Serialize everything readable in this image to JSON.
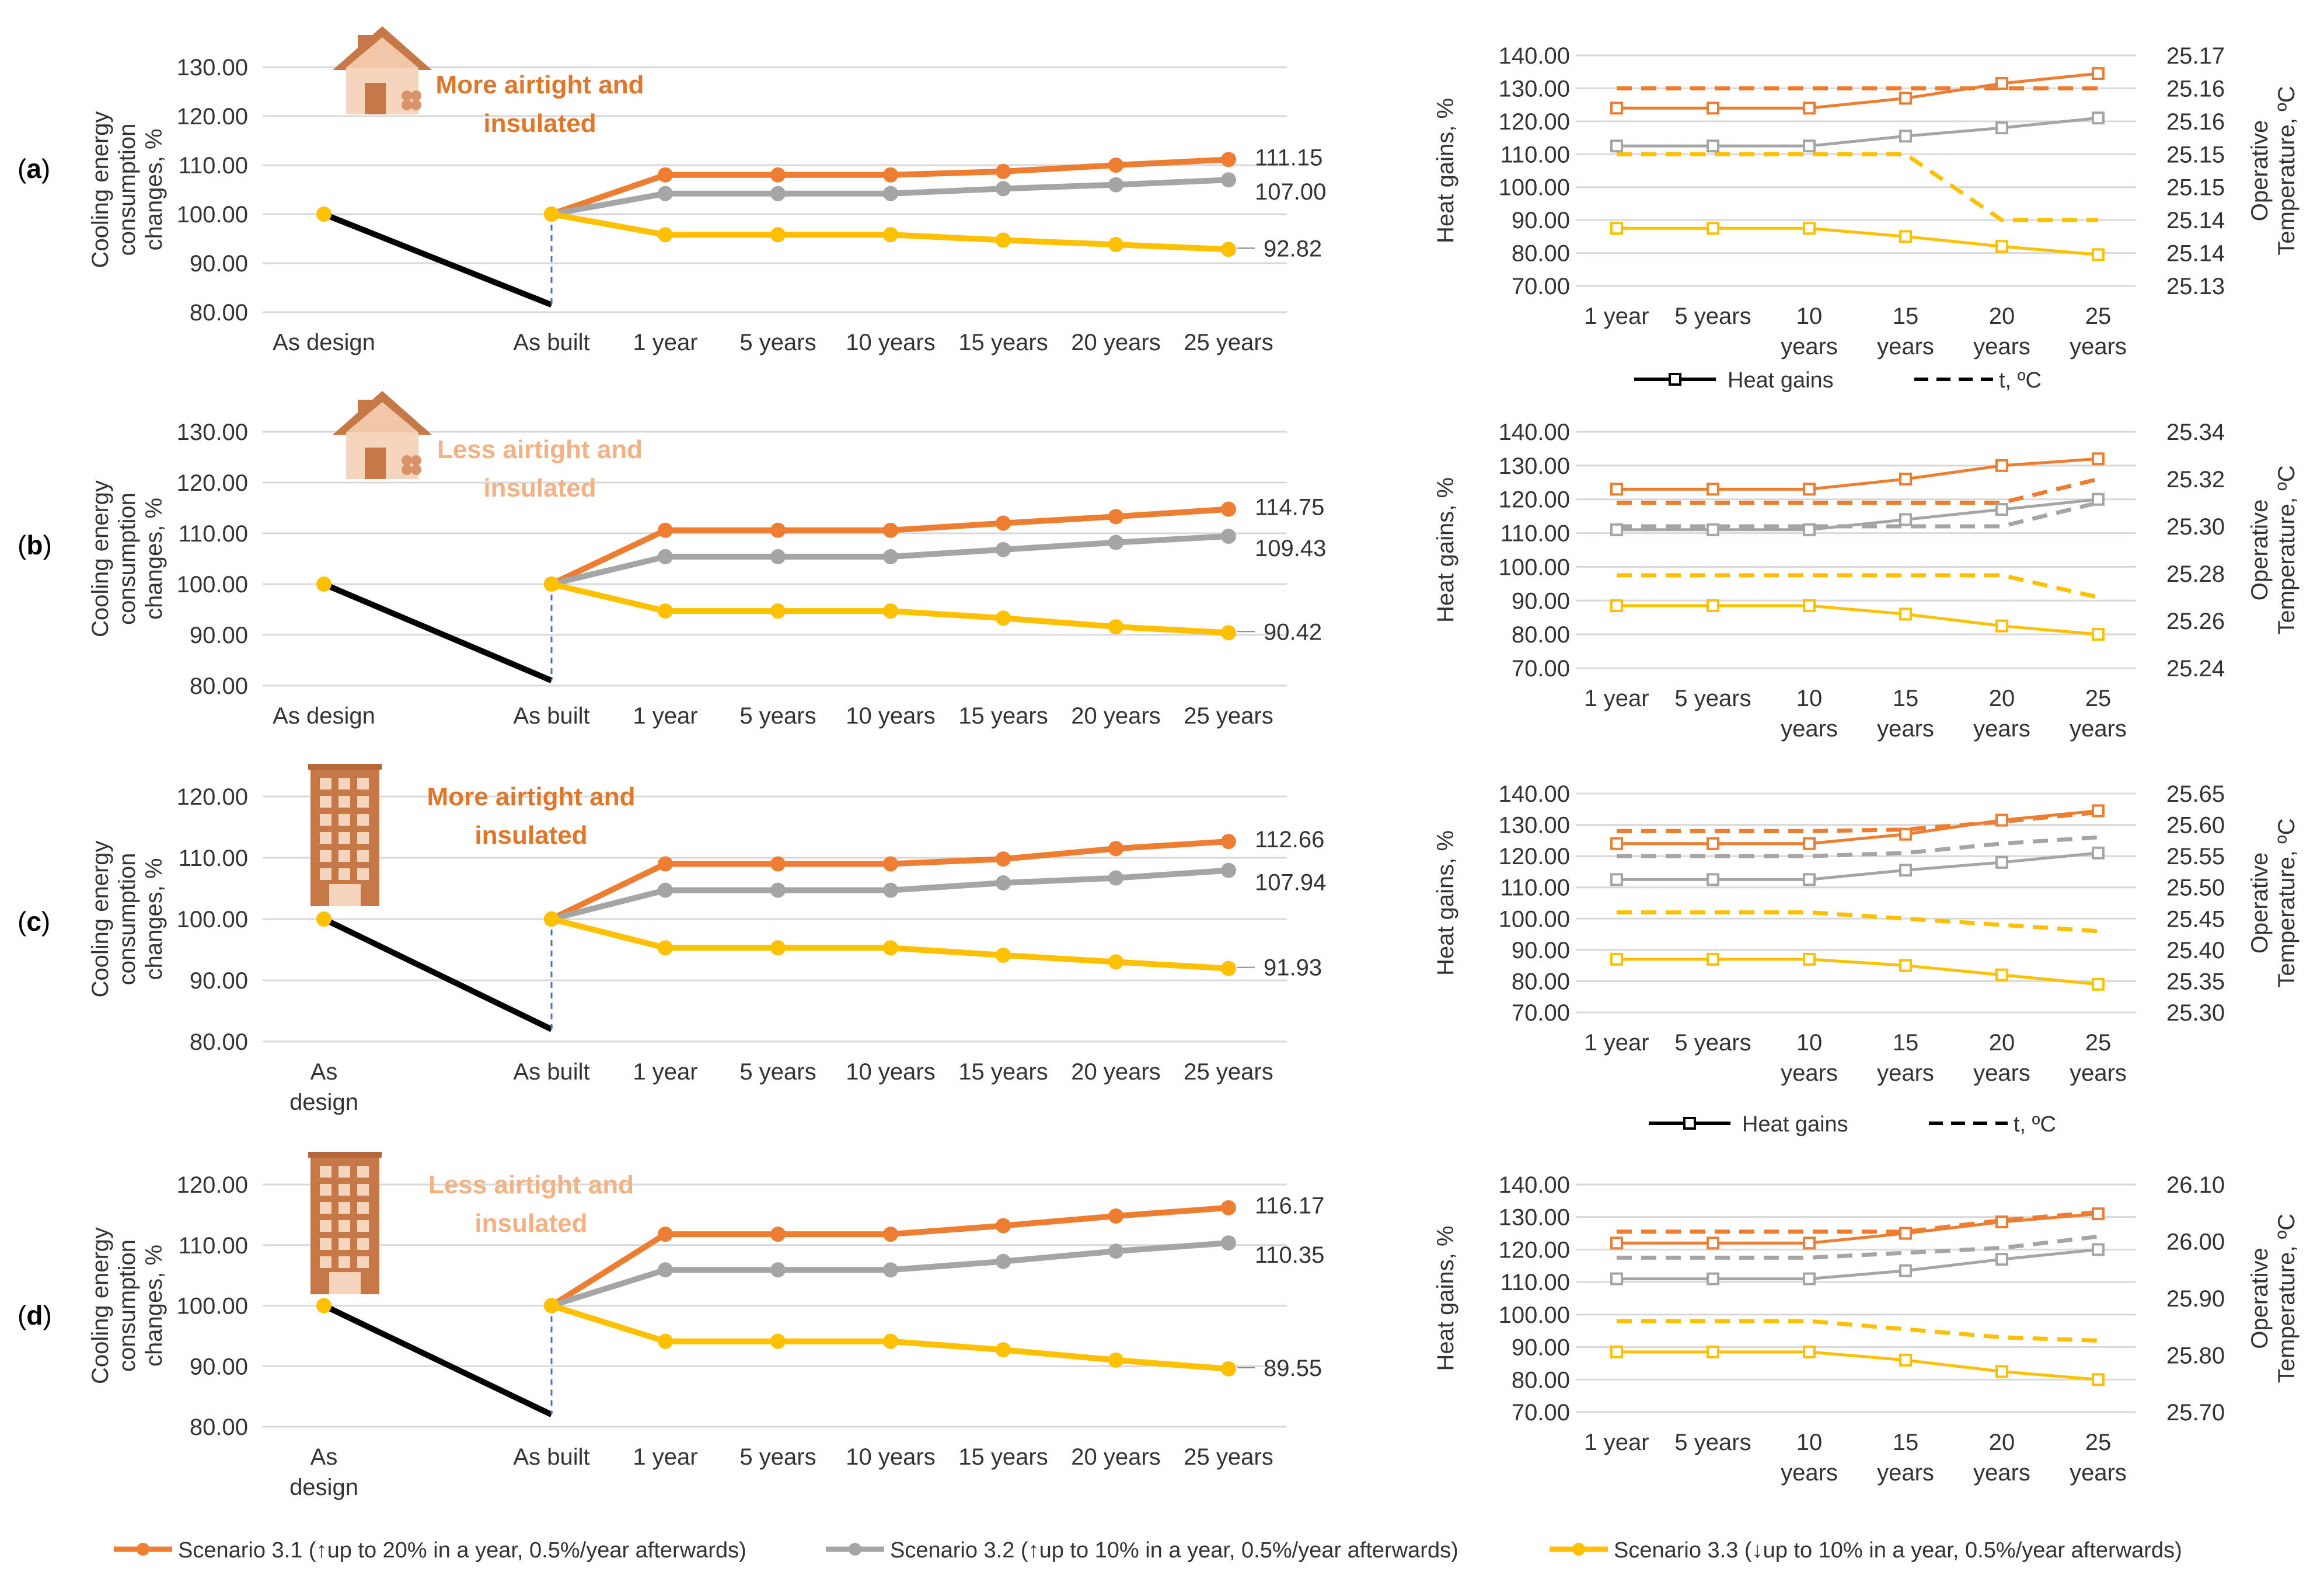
{
  "colors": {
    "s31": "#ED7D31",
    "s32": "#A5A5A5",
    "s33": "#FFC000",
    "black": "#000000",
    "grid": "#D9D9D9",
    "dark_orange_text": "#E0762A",
    "light_orange_text": "#F4B183",
    "connector": "#4472C4"
  },
  "legend_bottom": [
    {
      "name": "Scenario 3.1 (↑up to 20% in a year, 0.5%/year afterwards)",
      "color": "#ED7D31"
    },
    {
      "name": "Scenario 3.2 (↑up to 10% in a year, 0.5%/year afterwards)",
      "color": "#A5A5A5"
    },
    {
      "name": "Scenario 3.3 (↓up to 10% in a year, 0.5%/year afterwards)",
      "color": "#FFC000"
    }
  ],
  "legend_right": {
    "heat_gains": "Heat gains",
    "temperature": "t, ºC"
  },
  "chart_data": [
    {
      "type": "line",
      "panel": "(a)",
      "building": "house",
      "annotation": "More airtight and insulated",
      "annotation_lines": [
        "More airtight and",
        "insulated"
      ],
      "annotation_style": "dark",
      "ylabel_lines": [
        "Cooling energy",
        "consumption",
        "changes, %"
      ],
      "ylim": [
        80,
        130
      ],
      "yticks": [
        80,
        90,
        100,
        110,
        120,
        130
      ],
      "ytick_labels": [
        "80.00",
        "90.00",
        "100.00",
        "110.00",
        "120.00",
        "130.00"
      ],
      "categories": [
        [
          "As design"
        ],
        [
          "As built"
        ],
        [
          "1 year"
        ],
        [
          "5 years"
        ],
        [
          "10 years"
        ],
        [
          "15 years"
        ],
        [
          "20 years"
        ],
        [
          "25 years"
        ]
      ],
      "design_value": 100,
      "as_built_drop": 81.5,
      "series": [
        {
          "name": "Scenario 3.1",
          "values": [
            null,
            100,
            108.0,
            108.0,
            108.0,
            108.7,
            110.0,
            111.15
          ],
          "end_label": "111.15"
        },
        {
          "name": "Scenario 3.2",
          "values": [
            null,
            100,
            104.2,
            104.2,
            104.2,
            105.2,
            106.0,
            107.0
          ],
          "end_label": "107.00"
        },
        {
          "name": "Scenario 3.3",
          "values": [
            null,
            100,
            95.8,
            95.8,
            95.8,
            94.7,
            93.8,
            92.82
          ],
          "end_label": "92.82"
        }
      ]
    },
    {
      "type": "line",
      "panel": "(b)",
      "building": "house",
      "annotation": "Less airtight and insulated",
      "annotation_lines": [
        "Less airtight and",
        "insulated"
      ],
      "annotation_style": "light",
      "ylabel_lines": [
        "Cooling energy",
        "consumption",
        "changes, %"
      ],
      "ylim": [
        80,
        130
      ],
      "yticks": [
        80,
        90,
        100,
        110,
        120,
        130
      ],
      "ytick_labels": [
        "80.00",
        "90.00",
        "100.00",
        "110.00",
        "120.00",
        "130.00"
      ],
      "categories": [
        [
          "As design"
        ],
        [
          "As built"
        ],
        [
          "1 year"
        ],
        [
          "5 years"
        ],
        [
          "10 years"
        ],
        [
          "15 years"
        ],
        [
          "20 years"
        ],
        [
          "25 years"
        ]
      ],
      "design_value": 100,
      "as_built_drop": 81.0,
      "series": [
        {
          "name": "Scenario 3.1",
          "values": [
            null,
            100,
            110.6,
            110.6,
            110.6,
            112.0,
            113.3,
            114.75
          ],
          "end_label": "114.75"
        },
        {
          "name": "Scenario 3.2",
          "values": [
            null,
            100,
            105.4,
            105.4,
            105.4,
            106.8,
            108.2,
            109.43
          ],
          "end_label": "109.43"
        },
        {
          "name": "Scenario 3.3",
          "values": [
            null,
            100,
            94.7,
            94.7,
            94.7,
            93.3,
            91.6,
            90.42
          ],
          "end_label": "90.42"
        }
      ]
    },
    {
      "type": "line",
      "panel": "(c)",
      "building": "apartment",
      "annotation": "More airtight and insulated",
      "annotation_lines": [
        "More airtight and",
        "insulated"
      ],
      "annotation_style": "dark",
      "ylabel_lines": [
        "Cooling energy",
        "consumption",
        "changes, %"
      ],
      "ylim": [
        80,
        120
      ],
      "yticks": [
        80,
        90,
        100,
        110,
        120
      ],
      "ytick_labels": [
        "80.00",
        "90.00",
        "100.00",
        "110.00",
        "120.00"
      ],
      "categories": [
        [
          "As",
          "design"
        ],
        [
          "As built"
        ],
        [
          "1 year"
        ],
        [
          "5 years"
        ],
        [
          "10 years"
        ],
        [
          "15 years"
        ],
        [
          "20 years"
        ],
        [
          "25 years"
        ]
      ],
      "design_value": 100,
      "as_built_drop": 82.0,
      "series": [
        {
          "name": "Scenario 3.1",
          "values": [
            null,
            100,
            109.0,
            109.0,
            109.0,
            109.8,
            111.5,
            112.66
          ],
          "end_label": "112.66"
        },
        {
          "name": "Scenario 3.2",
          "values": [
            null,
            100,
            104.7,
            104.7,
            104.7,
            105.9,
            106.7,
            107.94
          ],
          "end_label": "107.94"
        },
        {
          "name": "Scenario 3.3",
          "values": [
            null,
            100,
            95.3,
            95.3,
            95.3,
            94.1,
            93.0,
            91.93
          ],
          "end_label": "91.93"
        }
      ]
    },
    {
      "type": "line",
      "panel": "(d)",
      "building": "apartment",
      "annotation": "Less airtight and insulated",
      "annotation_lines": [
        "Less airtight and",
        "insulated"
      ],
      "annotation_style": "light",
      "ylabel_lines": [
        "Cooling energy",
        "consumption",
        "changes, %"
      ],
      "ylim": [
        80,
        120
      ],
      "yticks": [
        80,
        90,
        100,
        110,
        120
      ],
      "ytick_labels": [
        "80.00",
        "90.00",
        "100.00",
        "110.00",
        "120.00"
      ],
      "categories": [
        [
          "As",
          "design"
        ],
        [
          "As built"
        ],
        [
          "1 year"
        ],
        [
          "5 years"
        ],
        [
          "10 years"
        ],
        [
          "15 years"
        ],
        [
          "20 years"
        ],
        [
          "25 years"
        ]
      ],
      "design_value": 100,
      "as_built_drop": 82.0,
      "series": [
        {
          "name": "Scenario 3.1",
          "values": [
            null,
            100,
            111.8,
            111.8,
            111.8,
            113.2,
            114.8,
            116.17
          ],
          "end_label": "116.17"
        },
        {
          "name": "Scenario 3.2",
          "values": [
            null,
            100,
            105.9,
            105.9,
            105.9,
            107.3,
            109.0,
            110.35
          ],
          "end_label": "110.35"
        },
        {
          "name": "Scenario 3.3",
          "values": [
            null,
            100,
            94.1,
            94.1,
            94.1,
            92.7,
            91.0,
            89.55
          ],
          "end_label": "89.55"
        }
      ]
    },
    {
      "type": "line",
      "panel": "(a) right",
      "ylabel_left": "Heat gains, %",
      "ylabel_right_lines": [
        "Operative",
        "Temperature, ºC"
      ],
      "ylim_left": [
        70,
        140
      ],
      "yticks_left": [
        "70.00",
        "80.00",
        "90.00",
        "100.00",
        "110.00",
        "120.00",
        "130.00",
        "140.00"
      ],
      "ylim_right": [
        25.13,
        25.17
      ],
      "yticks_right": [
        "25.13",
        "25.14",
        "25.14",
        "25.15",
        "25.15",
        "25.16",
        "25.16",
        "25.17"
      ],
      "categories": [
        [
          "1 year"
        ],
        [
          "5 years"
        ],
        [
          "10",
          "years"
        ],
        [
          "15",
          "years"
        ],
        [
          "20",
          "years"
        ],
        [
          "25",
          "years"
        ]
      ],
      "heat_gains": [
        {
          "name": "Scenario 3.1",
          "values": [
            124,
            124,
            124,
            127,
            131.5,
            134.5
          ]
        },
        {
          "name": "Scenario 3.2",
          "values": [
            112.5,
            112.5,
            112.5,
            115.5,
            118,
            121
          ]
        },
        {
          "name": "Scenario 3.3",
          "values": [
            87.5,
            87.5,
            87.5,
            85,
            82,
            79.5
          ]
        }
      ],
      "temperature_on_left_scale": [
        {
          "name": "Scenario 3.1",
          "values": [
            130,
            130,
            130,
            130,
            130,
            130
          ]
        },
        {
          "name": "Scenario 3.3",
          "values": [
            110,
            110,
            110,
            110,
            90,
            90
          ]
        }
      ]
    },
    {
      "type": "line",
      "panel": "(b) right",
      "ylabel_left": "Heat gains, %",
      "ylabel_right_lines": [
        "Operative",
        "Temperature, ºC"
      ],
      "ylim_left": [
        70,
        140
      ],
      "yticks_left": [
        "70.00",
        "80.00",
        "90.00",
        "100.00",
        "110.00",
        "120.00",
        "130.00",
        "140.00"
      ],
      "ylim_right": [
        25.24,
        25.34
      ],
      "yticks_right": [
        "25.24",
        "25.26",
        "25.28",
        "25.30",
        "25.32",
        "25.34"
      ],
      "categories": [
        [
          "1 year"
        ],
        [
          "5 years"
        ],
        [
          "10",
          "years"
        ],
        [
          "15",
          "years"
        ],
        [
          "20",
          "years"
        ],
        [
          "25",
          "years"
        ]
      ],
      "heat_gains": [
        {
          "name": "Scenario 3.1",
          "values": [
            123,
            123,
            123,
            126,
            130,
            132
          ]
        },
        {
          "name": "Scenario 3.2",
          "values": [
            111,
            111,
            111,
            114,
            117,
            120
          ]
        },
        {
          "name": "Scenario 3.3",
          "values": [
            88.5,
            88.5,
            88.5,
            86,
            82.5,
            80
          ]
        }
      ],
      "temperature_on_left_scale": [
        {
          "name": "Scenario 3.1",
          "values": [
            119,
            119,
            119,
            119,
            119,
            126
          ]
        },
        {
          "name": "Scenario 3.2",
          "values": [
            112,
            112,
            112,
            112,
            112,
            119
          ]
        },
        {
          "name": "Scenario 3.3",
          "values": [
            97.5,
            97.5,
            97.5,
            97.5,
            97.5,
            91
          ]
        }
      ]
    },
    {
      "type": "line",
      "panel": "(c) right",
      "ylabel_left": "Heat gains, %",
      "ylabel_right_lines": [
        "Operative",
        "Temperature, ºC"
      ],
      "ylim_left": [
        70,
        140
      ],
      "yticks_left": [
        "70.00",
        "80.00",
        "90.00",
        "100.00",
        "110.00",
        "120.00",
        "130.00",
        "140.00"
      ],
      "ylim_right": [
        25.3,
        25.65
      ],
      "yticks_right": [
        "25.30",
        "25.35",
        "25.40",
        "25.45",
        "25.50",
        "25.55",
        "25.60",
        "25.65"
      ],
      "categories": [
        [
          "1 year"
        ],
        [
          "5 years"
        ],
        [
          "10",
          "years"
        ],
        [
          "15",
          "years"
        ],
        [
          "20",
          "years"
        ],
        [
          "25",
          "years"
        ]
      ],
      "heat_gains": [
        {
          "name": "Scenario 3.1",
          "values": [
            124,
            124,
            124,
            127,
            131.5,
            134.5
          ]
        },
        {
          "name": "Scenario 3.2",
          "values": [
            112.5,
            112.5,
            112.5,
            115.5,
            118,
            121
          ]
        },
        {
          "name": "Scenario 3.3",
          "values": [
            87,
            87,
            87,
            85,
            82,
            79
          ]
        }
      ],
      "temperature_on_left_scale": [
        {
          "name": "Scenario 3.1",
          "values": [
            128,
            128,
            128,
            128.5,
            131,
            134
          ]
        },
        {
          "name": "Scenario 3.2",
          "values": [
            120,
            120,
            120,
            121,
            124,
            126
          ]
        },
        {
          "name": "Scenario 3.3",
          "values": [
            102,
            102,
            102,
            100,
            98,
            96
          ]
        }
      ]
    },
    {
      "type": "line",
      "panel": "(d) right",
      "ylabel_left": "Heat gains, %",
      "ylabel_right_lines": [
        "Operative",
        "Temperature, ºC"
      ],
      "ylim_left": [
        70,
        140
      ],
      "yticks_left": [
        "70.00",
        "80.00",
        "90.00",
        "100.00",
        "110.00",
        "120.00",
        "130.00",
        "140.00"
      ],
      "ylim_right": [
        25.7,
        26.1
      ],
      "yticks_right": [
        "25.70",
        "25.80",
        "25.90",
        "26.00",
        "26.10"
      ],
      "categories": [
        [
          "1 year"
        ],
        [
          "5 years"
        ],
        [
          "10",
          "years"
        ],
        [
          "15",
          "years"
        ],
        [
          "20",
          "years"
        ],
        [
          "25",
          "years"
        ]
      ],
      "heat_gains": [
        {
          "name": "Scenario 3.1",
          "values": [
            122,
            122,
            122,
            125,
            128.5,
            131
          ]
        },
        {
          "name": "Scenario 3.2",
          "values": [
            111,
            111,
            111,
            113.5,
            117,
            120
          ]
        },
        {
          "name": "Scenario 3.3",
          "values": [
            88.5,
            88.5,
            88.5,
            86,
            82.5,
            80
          ]
        }
      ],
      "temperature_on_left_scale": [
        {
          "name": "Scenario 3.1",
          "values": [
            125.5,
            125.5,
            125.5,
            125.5,
            129,
            131.5
          ]
        },
        {
          "name": "Scenario 3.2",
          "values": [
            117.5,
            117.5,
            117.5,
            119,
            120.5,
            124
          ]
        },
        {
          "name": "Scenario 3.3",
          "values": [
            98,
            98,
            98,
            95.5,
            93,
            92
          ]
        }
      ]
    }
  ]
}
